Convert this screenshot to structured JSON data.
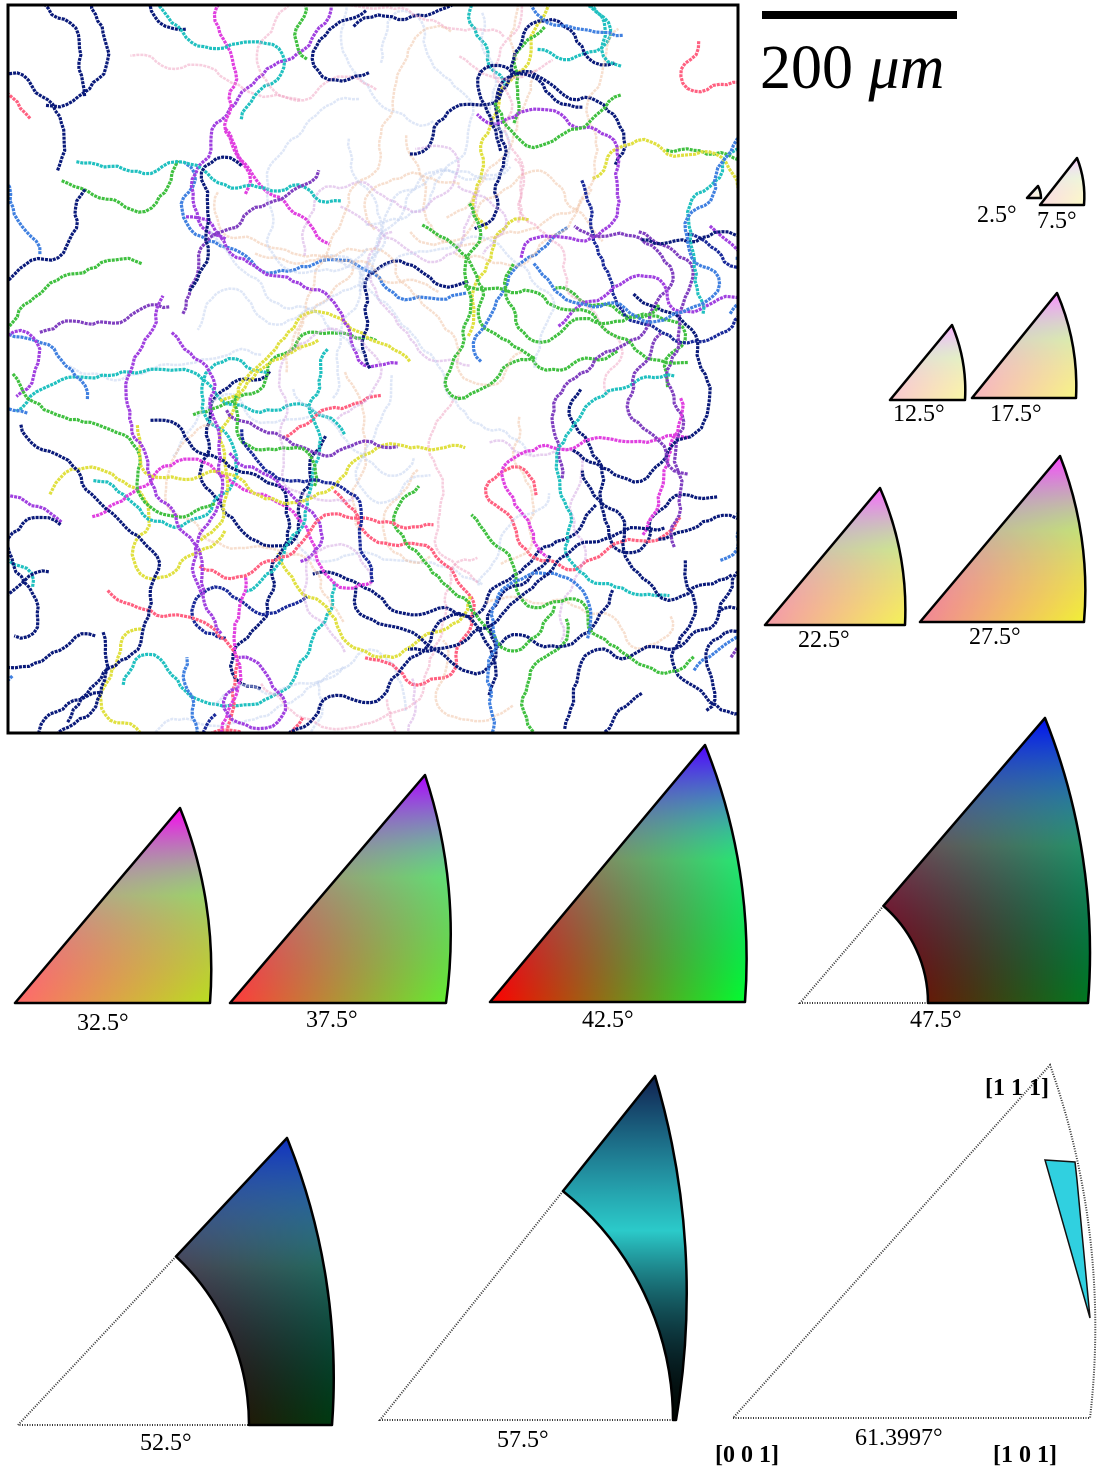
{
  "scale_bar": {
    "number": "200",
    "unit": "μm"
  },
  "keys": [
    {
      "label": "2.5°"
    },
    {
      "label": "7.5°"
    },
    {
      "label": "12.5°"
    },
    {
      "label": "17.5°"
    },
    {
      "label": "22.5°"
    },
    {
      "label": "27.5°"
    },
    {
      "label": "32.5°"
    },
    {
      "label": "37.5°"
    },
    {
      "label": "42.5°"
    },
    {
      "label": "47.5°"
    },
    {
      "label": "52.5°"
    },
    {
      "label": "57.5°"
    },
    {
      "label": "61.3997°"
    }
  ],
  "corners": {
    "top": "[1 1 1]",
    "origin": "[0 0 1]",
    "right": "[1 0 1]"
  }
}
